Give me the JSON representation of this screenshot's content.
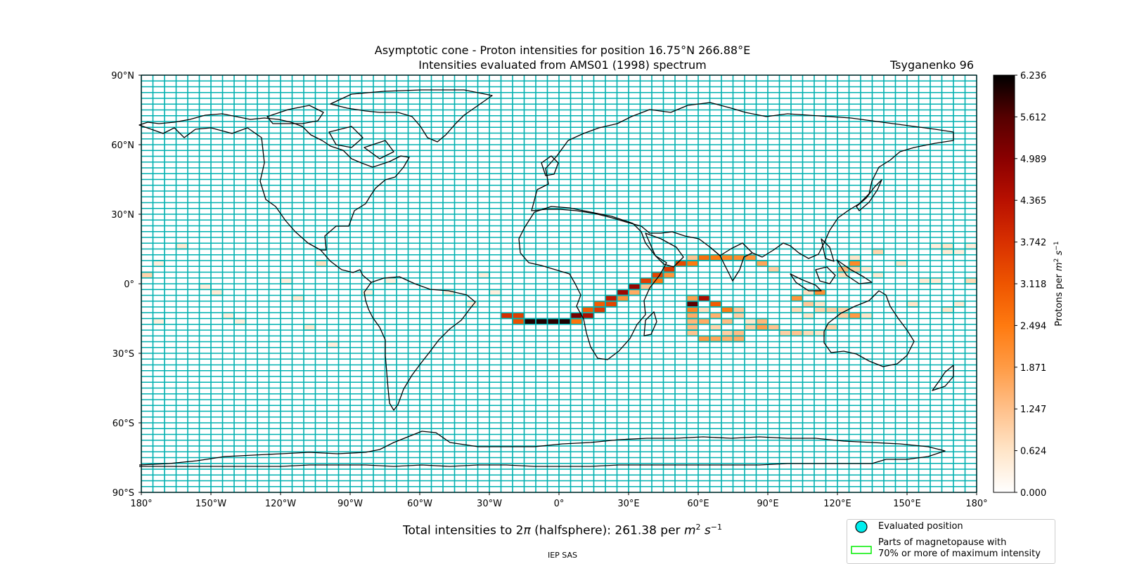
{
  "title_line1": "Asymptotic cone - Proton intensities for position 16.75°N 266.88°E",
  "title_line2": "Intensities evaluated from AMS01 (1998) spectrum",
  "model_label": "Tsyganenko 96",
  "footer": "IEP SAS",
  "total_text_prefix": "Total intensities to 2",
  "total_text_pi": "π",
  "total_text_middle": " (halfsphere): 261.38 per ",
  "total_text_unit_m": "m",
  "total_text_unit_m_exp": "2",
  "total_text_unit_s": "s",
  "total_text_unit_s_exp": "−1",
  "legend": {
    "evaluated_position": "Evaluated position",
    "magnetopause_line1": "Parts of magnetopause with",
    "magnetopause_line2": "70% or more of maximum intensity"
  },
  "colors": {
    "grid_cell_outline": "#00b0b0",
    "evaluated_marker": "#00eeee",
    "magnetopause_outline": "#00ee00",
    "coastline": "#000000"
  },
  "chart_data": {
    "type": "heatmap",
    "map_projection": "equirectangular",
    "lon_ticks": [
      "180°",
      "150°W",
      "120°W",
      "90°W",
      "60°W",
      "30°W",
      "0°",
      "30°E",
      "60°E",
      "90°E",
      "120°E",
      "150°E",
      "180°"
    ],
    "lat_ticks": [
      "90°N",
      "60°N",
      "30°N",
      "0°",
      "30°S",
      "60°S",
      "90°S"
    ],
    "grid_cell_size_deg": [
      5,
      2.5
    ],
    "colorbar": {
      "label": "Protons per m² s⁻¹",
      "ticks": [
        "0.000",
        "0.624",
        "1.247",
        "1.871",
        "2.494",
        "3.118",
        "3.742",
        "4.365",
        "4.989",
        "5.612",
        "6.236"
      ],
      "min": 0,
      "max": 6.236,
      "colormap": [
        "#ffffff",
        "#ffe5c8",
        "#ffc08a",
        "#ff9b45",
        "#ff7a10",
        "#ee5500",
        "#d83000",
        "#b81000",
        "#8a0000",
        "#550000",
        "#000000"
      ]
    },
    "cells": [
      [
        -25,
        -15,
        3.8
      ],
      [
        -20,
        -15,
        3.5
      ],
      [
        -20,
        -17.5,
        3.2
      ],
      [
        -15,
        -17.5,
        6.0
      ],
      [
        -10,
        -17.5,
        6.0
      ],
      [
        -5,
        -17.5,
        5.9
      ],
      [
        0,
        -17.5,
        6.0
      ],
      [
        5,
        -15,
        5.2
      ],
      [
        5,
        -17.5,
        2.6
      ],
      [
        10,
        -12.5,
        3.0
      ],
      [
        10,
        -15,
        4.5
      ],
      [
        15,
        -12.5,
        3.6
      ],
      [
        15,
        -10,
        3.0
      ],
      [
        20,
        -7.5,
        4.2
      ],
      [
        20,
        -10,
        3.4
      ],
      [
        25,
        -5,
        4.7
      ],
      [
        25,
        -7.5,
        2.0
      ],
      [
        30,
        -2.5,
        4.8
      ],
      [
        30,
        -5,
        1.6
      ],
      [
        35,
        0,
        3.5
      ],
      [
        35,
        -2.5,
        1.2
      ],
      [
        40,
        2.5,
        3.4
      ],
      [
        40,
        0,
        2.5
      ],
      [
        45,
        5,
        3.6
      ],
      [
        45,
        2.5,
        2.0
      ],
      [
        50,
        7.5,
        3.3
      ],
      [
        55,
        7.5,
        2.5
      ],
      [
        55,
        10,
        1.2
      ],
      [
        60,
        10,
        2.7
      ],
      [
        65,
        10,
        2.5
      ],
      [
        70,
        10,
        2.3
      ],
      [
        75,
        10,
        2.2
      ],
      [
        80,
        10,
        2.0
      ],
      [
        85,
        7.5,
        1.7
      ],
      [
        90,
        5,
        1.0
      ],
      [
        55,
        -7.5,
        1.8
      ],
      [
        55,
        -10,
        5.5
      ],
      [
        55,
        -12.5,
        2.3
      ],
      [
        55,
        -15,
        1.6
      ],
      [
        55,
        -17.5,
        1.4
      ],
      [
        55,
        -20,
        1.3
      ],
      [
        55,
        -22.5,
        1.2
      ],
      [
        60,
        -7.5,
        4.5
      ],
      [
        60,
        -12.5,
        0.7
      ],
      [
        60,
        -17.5,
        1.6
      ],
      [
        60,
        -25,
        1.9
      ],
      [
        65,
        -10,
        3.0
      ],
      [
        65,
        -15,
        1.5
      ],
      [
        65,
        -20,
        0.9
      ],
      [
        65,
        -25,
        1.7
      ],
      [
        70,
        -12.5,
        2.5
      ],
      [
        70,
        -17.5,
        1.3
      ],
      [
        70,
        -22.5,
        1.0
      ],
      [
        70,
        -25,
        1.5
      ],
      [
        75,
        -12.5,
        1.1
      ],
      [
        75,
        -15,
        1.0
      ],
      [
        75,
        -22.5,
        1.3
      ],
      [
        75,
        -25,
        1.6
      ],
      [
        80,
        -17.5,
        0.6
      ],
      [
        80,
        -20,
        1.0
      ],
      [
        85,
        -17.5,
        1.4
      ],
      [
        85,
        -20,
        1.8
      ],
      [
        90,
        -20,
        1.2
      ],
      [
        95,
        -22.5,
        1.0
      ],
      [
        100,
        -7.5,
        2.0
      ],
      [
        100,
        -12.5,
        0.8
      ],
      [
        100,
        -22.5,
        1.2
      ],
      [
        105,
        -5,
        0.7
      ],
      [
        105,
        -10,
        1.1
      ],
      [
        105,
        -15,
        0.6
      ],
      [
        105,
        -22.5,
        0.8
      ],
      [
        110,
        -5,
        2.1
      ],
      [
        110,
        -10,
        0.6
      ],
      [
        110,
        -12.5,
        0.9
      ],
      [
        110,
        -22.5,
        0.6
      ],
      [
        115,
        -12.5,
        1.0
      ],
      [
        115,
        -20,
        0.9
      ],
      [
        120,
        -12.5,
        0.9
      ],
      [
        120,
        -15,
        1.0
      ],
      [
        120,
        2.5,
        0.7
      ],
      [
        120,
        5,
        1.4
      ],
      [
        125,
        5,
        1.0
      ],
      [
        125,
        -15,
        1.9
      ],
      [
        125,
        10,
        0.6
      ],
      [
        125,
        7.5,
        2.2
      ],
      [
        130,
        5,
        0.5
      ],
      [
        130,
        -15,
        0.6
      ],
      [
        135,
        12.5,
        0.9
      ],
      [
        135,
        2.5,
        0.5
      ],
      [
        145,
        7.5,
        0.6
      ],
      [
        150,
        -10,
        0.6
      ],
      [
        155,
        0,
        0.5
      ],
      [
        160,
        0,
        0.5
      ],
      [
        160,
        15,
        0.4
      ],
      [
        165,
        15,
        0.6
      ],
      [
        165,
        12.5,
        0.5
      ],
      [
        170,
        12.5,
        0.4
      ],
      [
        175,
        15,
        0.4
      ],
      [
        175,
        0,
        0.8
      ],
      [
        165,
        -12.5,
        0.6
      ],
      [
        170,
        -10,
        0.5
      ],
      [
        -175,
        7.5,
        0.4
      ],
      [
        -180,
        2.5,
        0.9
      ],
      [
        -165,
        15,
        0.5
      ],
      [
        -175,
        -17.5,
        0.4
      ],
      [
        -150,
        -5,
        0.5
      ],
      [
        -155,
        -2.5,
        0.4
      ],
      [
        -145,
        -15,
        0.4
      ],
      [
        -140,
        -17.5,
        0.4
      ],
      [
        -120,
        0,
        0.4
      ],
      [
        -115,
        -7.5,
        0.5
      ],
      [
        -110,
        -20,
        0.5
      ],
      [
        -105,
        7.5,
        0.7
      ],
      [
        -100,
        -27.5,
        0.4
      ],
      [
        -85,
        -5,
        0.4
      ],
      [
        -75,
        0,
        0.4
      ],
      [
        -50,
        -5,
        0.4
      ],
      [
        -40,
        -10,
        0.4
      ],
      [
        -30,
        -5,
        0.4
      ],
      [
        -35,
        2.5,
        0.4
      ]
    ]
  }
}
